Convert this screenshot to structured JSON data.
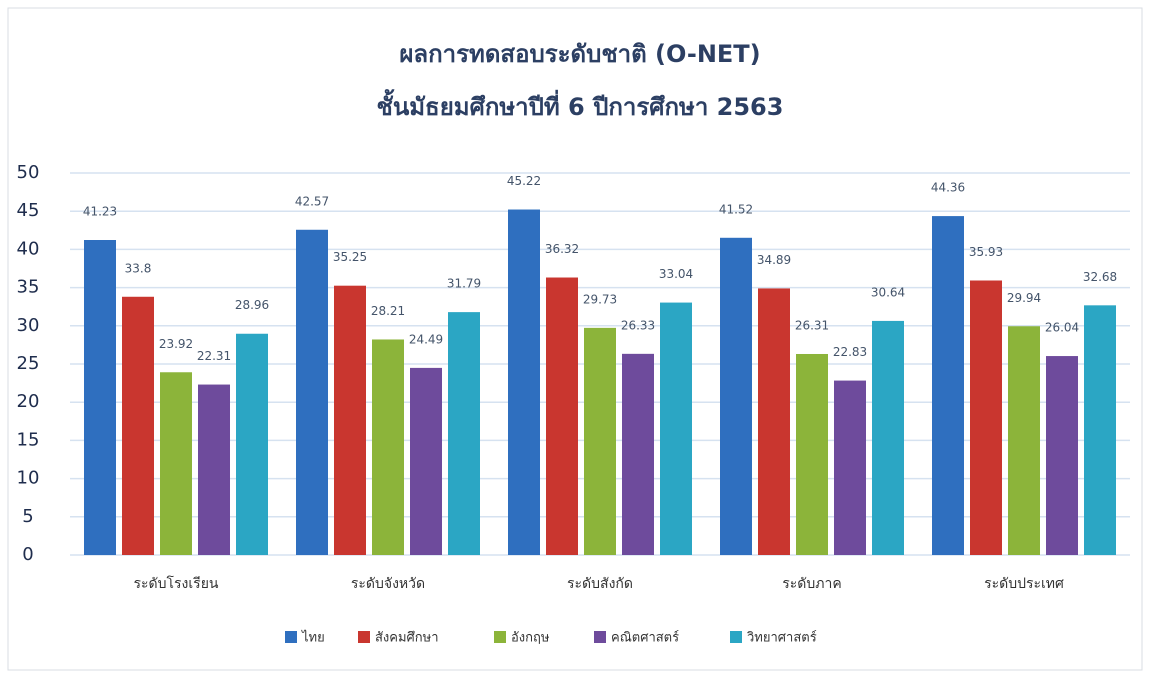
{
  "chart_data": {
    "type": "bar",
    "title": "ผลการทดสอบระดับชาติ (O-NET)",
    "subtitle": "ชั้นมัธยมศึกษาปีที่ 6 ปีการศึกษา 2563",
    "categories": [
      "ระดับโรงเรียน",
      "ระดับจังหวัด",
      "ระดับสังกัด",
      "ระดับภาค",
      "ระดับประเทศ"
    ],
    "series": [
      {
        "name": "ไทย",
        "color": "#2f6fbf",
        "values": [
          41.23,
          42.57,
          45.22,
          41.52,
          44.36
        ]
      },
      {
        "name": "สังคมศึกษา",
        "color": "#c9362f",
        "values": [
          33.8,
          35.25,
          36.32,
          34.89,
          35.93
        ]
      },
      {
        "name": "อังกฤษ",
        "color": "#8cb43a",
        "values": [
          23.92,
          28.21,
          29.73,
          26.31,
          29.94
        ]
      },
      {
        "name": "คณิตศาสตร์",
        "color": "#6e4b9c",
        "values": [
          22.31,
          24.49,
          26.33,
          22.83,
          26.04
        ]
      },
      {
        "name": "วิทยาศาสตร์",
        "color": "#2ba6c4",
        "values": [
          28.96,
          31.79,
          33.04,
          30.64,
          32.68
        ]
      }
    ],
    "ylim": [
      0,
      50
    ],
    "yticks": [
      0,
      5,
      10,
      15,
      20,
      25,
      30,
      35,
      40,
      45,
      50
    ],
    "grid": true,
    "legend": "bottom"
  }
}
